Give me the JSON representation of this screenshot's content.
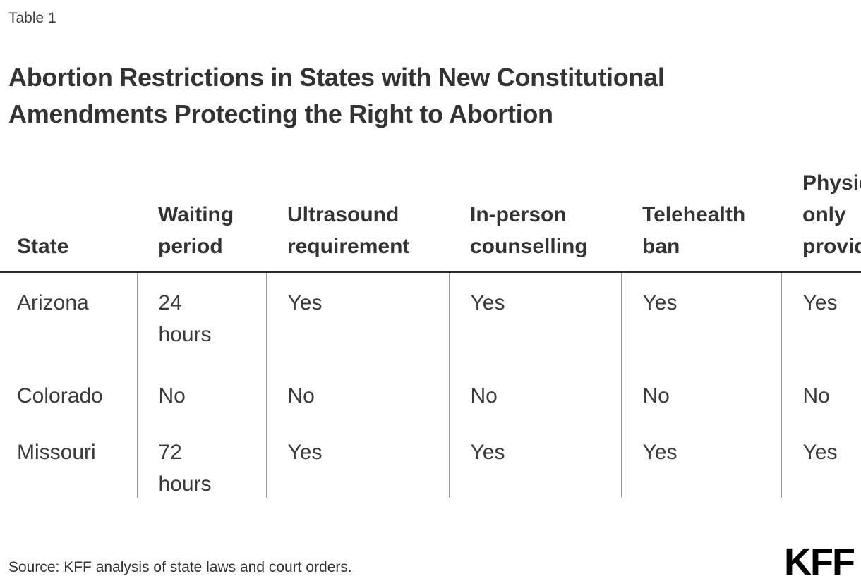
{
  "page": {
    "table_label": "Table 1",
    "source": "Source: KFF analysis of state laws and court orders.",
    "logo_text": "KFF"
  },
  "chart_data": {
    "type": "table",
    "title": "Abortion Restrictions in States with New Constitutional Amendments Protecting the Right to Abortion",
    "columns": [
      "State",
      "Waiting period",
      "Ultrasound requirement",
      "In-person counselling",
      "Telehealth ban",
      "Physician only provider"
    ],
    "rows": [
      {
        "cells": [
          "Arizona",
          "24 hours",
          "Yes",
          "Yes",
          "Yes",
          "Yes"
        ]
      },
      {
        "cells": [
          "Colorado",
          "No",
          "No",
          "No",
          "No",
          "No"
        ]
      },
      {
        "cells": [
          "Missouri",
          "72 hours",
          "Yes",
          "Yes",
          "Yes",
          "Yes"
        ]
      }
    ]
  },
  "colors": {
    "title_text": "#333333",
    "body_text": "#3b3b3b",
    "header_rule": "#2b2b2b",
    "column_divider": "#9b9b9b",
    "logo": "#000000"
  }
}
